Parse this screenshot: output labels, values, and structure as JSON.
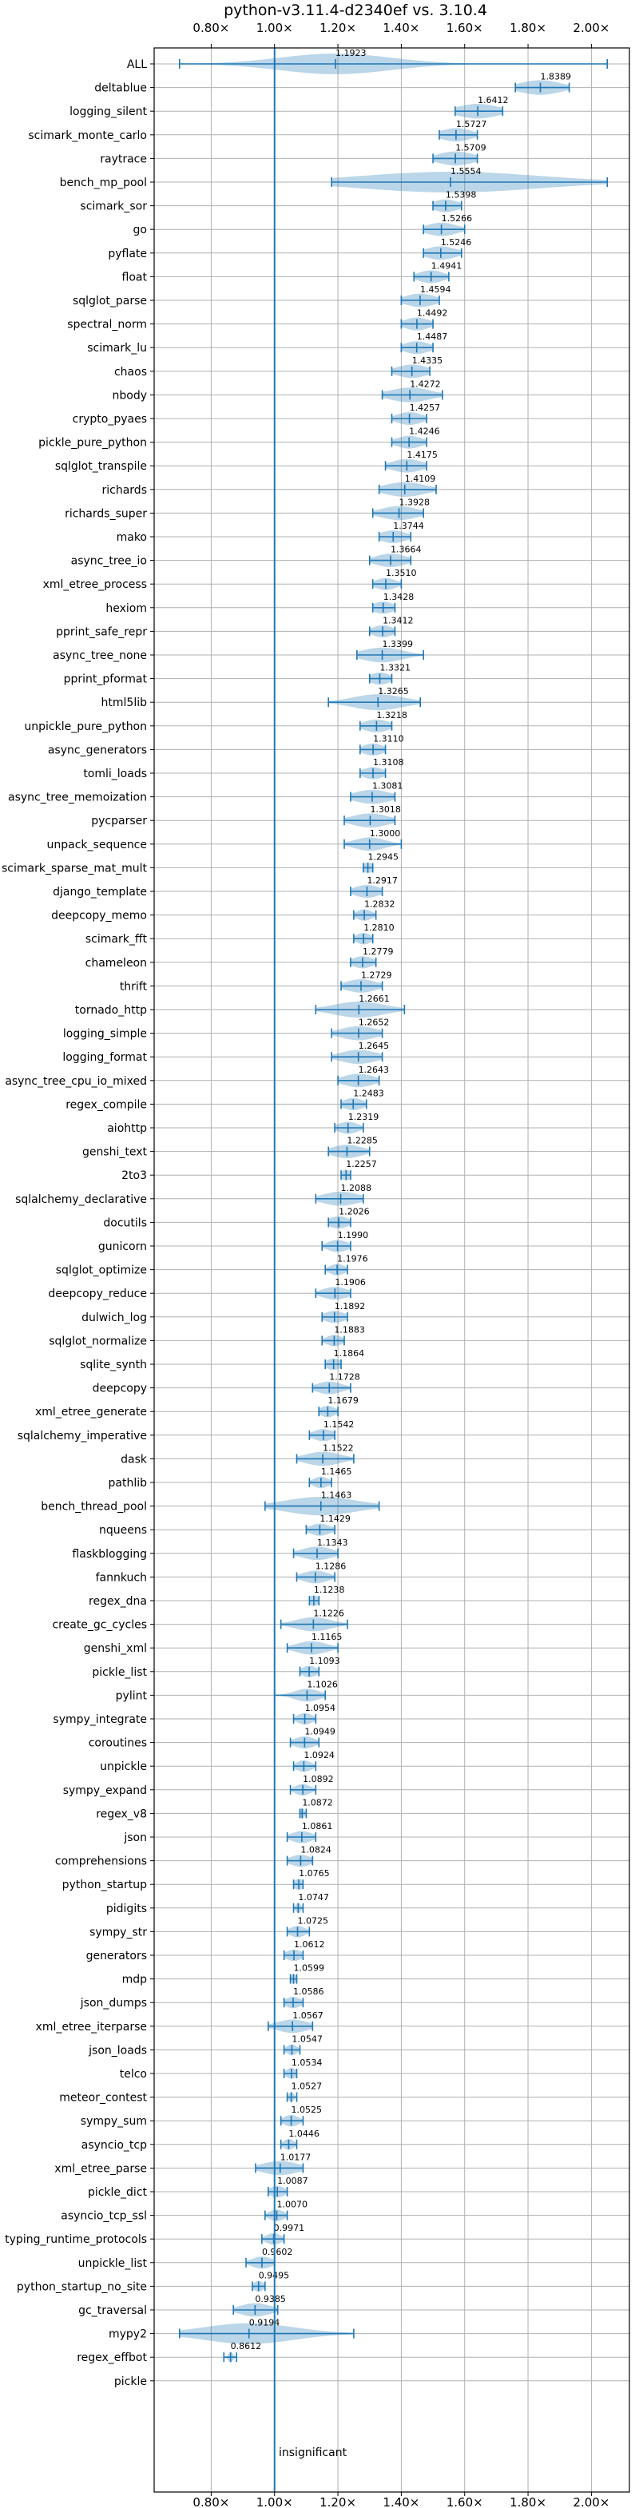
{
  "chart_data": {
    "type": "violin",
    "title": "python-v3.11.4-d2340ef vs. 3.10.4",
    "xlabel": "",
    "ylabel": "",
    "xlim": [
      0.62,
      2.12
    ],
    "x_ticks": [
      0.8,
      1.0,
      1.2,
      1.4,
      1.6,
      1.8,
      2.0
    ],
    "x_tick_labels": [
      "0.80×",
      "1.00×",
      "1.20×",
      "1.40×",
      "1.60×",
      "1.80×",
      "2.00×"
    ],
    "reference_x": 1.0,
    "grid": true,
    "color": "#1f77b4",
    "annotation": "insignificant",
    "benchmarks": [
      {
        "name": "ALL",
        "value": 1.1923,
        "min": 0.7,
        "max": 2.05,
        "spread": 0.22
      },
      {
        "name": "deltablue",
        "value": 1.8389,
        "min": 1.76,
        "max": 1.93,
        "spread": 0.08
      },
      {
        "name": "logging_silent",
        "value": 1.6412,
        "min": 1.57,
        "max": 1.72,
        "spread": 0.08
      },
      {
        "name": "scimark_monte_carlo",
        "value": 1.5727,
        "min": 1.52,
        "max": 1.64,
        "spread": 0.06
      },
      {
        "name": "raytrace",
        "value": 1.5709,
        "min": 1.5,
        "max": 1.64,
        "spread": 0.07
      },
      {
        "name": "bench_mp_pool",
        "value": 1.5554,
        "min": 1.18,
        "max": 2.05,
        "spread": 0.35
      },
      {
        "name": "scimark_sor",
        "value": 1.5398,
        "min": 1.5,
        "max": 1.59,
        "spread": 0.05
      },
      {
        "name": "go",
        "value": 1.5266,
        "min": 1.47,
        "max": 1.6,
        "spread": 0.06
      },
      {
        "name": "pyflate",
        "value": 1.5246,
        "min": 1.47,
        "max": 1.59,
        "spread": 0.06
      },
      {
        "name": "float",
        "value": 1.4941,
        "min": 1.44,
        "max": 1.55,
        "spread": 0.05
      },
      {
        "name": "sqlglot_parse",
        "value": 1.4594,
        "min": 1.4,
        "max": 1.52,
        "spread": 0.06
      },
      {
        "name": "spectral_norm",
        "value": 1.4492,
        "min": 1.4,
        "max": 1.5,
        "spread": 0.05
      },
      {
        "name": "scimark_lu",
        "value": 1.4487,
        "min": 1.4,
        "max": 1.5,
        "spread": 0.05
      },
      {
        "name": "chaos",
        "value": 1.4335,
        "min": 1.37,
        "max": 1.49,
        "spread": 0.06
      },
      {
        "name": "nbody",
        "value": 1.4272,
        "min": 1.34,
        "max": 1.53,
        "spread": 0.08
      },
      {
        "name": "crypto_pyaes",
        "value": 1.4257,
        "min": 1.37,
        "max": 1.48,
        "spread": 0.05
      },
      {
        "name": "pickle_pure_python",
        "value": 1.4246,
        "min": 1.37,
        "max": 1.48,
        "spread": 0.05
      },
      {
        "name": "sqlglot_transpile",
        "value": 1.4175,
        "min": 1.35,
        "max": 1.48,
        "spread": 0.06
      },
      {
        "name": "richards",
        "value": 1.4109,
        "min": 1.33,
        "max": 1.51,
        "spread": 0.08
      },
      {
        "name": "richards_super",
        "value": 1.3928,
        "min": 1.31,
        "max": 1.47,
        "spread": 0.07
      },
      {
        "name": "mako",
        "value": 1.3744,
        "min": 1.33,
        "max": 1.43,
        "spread": 0.05
      },
      {
        "name": "async_tree_io",
        "value": 1.3664,
        "min": 1.3,
        "max": 1.43,
        "spread": 0.06
      },
      {
        "name": "xml_etree_process",
        "value": 1.351,
        "min": 1.31,
        "max": 1.4,
        "spread": 0.04
      },
      {
        "name": "hexiom",
        "value": 1.3428,
        "min": 1.31,
        "max": 1.38,
        "spread": 0.04
      },
      {
        "name": "pprint_safe_repr",
        "value": 1.3412,
        "min": 1.3,
        "max": 1.38,
        "spread": 0.04
      },
      {
        "name": "async_tree_none",
        "value": 1.3399,
        "min": 1.26,
        "max": 1.47,
        "spread": 0.08
      },
      {
        "name": "pprint_pformat",
        "value": 1.3321,
        "min": 1.3,
        "max": 1.37,
        "spread": 0.04
      },
      {
        "name": "html5lib",
        "value": 1.3265,
        "min": 1.17,
        "max": 1.46,
        "spread": 0.1
      },
      {
        "name": "unpickle_pure_python",
        "value": 1.3218,
        "min": 1.27,
        "max": 1.37,
        "spread": 0.05
      },
      {
        "name": "async_generators",
        "value": 1.311,
        "min": 1.27,
        "max": 1.35,
        "spread": 0.04
      },
      {
        "name": "tomli_loads",
        "value": 1.3108,
        "min": 1.27,
        "max": 1.35,
        "spread": 0.04
      },
      {
        "name": "async_tree_memoization",
        "value": 1.3081,
        "min": 1.24,
        "max": 1.38,
        "spread": 0.07
      },
      {
        "name": "pycparser",
        "value": 1.3018,
        "min": 1.22,
        "max": 1.38,
        "spread": 0.07
      },
      {
        "name": "unpack_sequence",
        "value": 1.3,
        "min": 1.22,
        "max": 1.4,
        "spread": 0.06
      },
      {
        "name": "scimark_sparse_mat_mult",
        "value": 1.2945,
        "min": 1.28,
        "max": 1.31,
        "spread": 0.02
      },
      {
        "name": "django_template",
        "value": 1.2917,
        "min": 1.24,
        "max": 1.34,
        "spread": 0.05
      },
      {
        "name": "deepcopy_memo",
        "value": 1.2832,
        "min": 1.25,
        "max": 1.32,
        "spread": 0.03
      },
      {
        "name": "scimark_fft",
        "value": 1.281,
        "min": 1.25,
        "max": 1.31,
        "spread": 0.03
      },
      {
        "name": "chameleon",
        "value": 1.2779,
        "min": 1.24,
        "max": 1.32,
        "spread": 0.04
      },
      {
        "name": "thrift",
        "value": 1.2729,
        "min": 1.21,
        "max": 1.34,
        "spread": 0.06
      },
      {
        "name": "tornado_http",
        "value": 1.2661,
        "min": 1.13,
        "max": 1.41,
        "spread": 0.1
      },
      {
        "name": "logging_simple",
        "value": 1.2652,
        "min": 1.18,
        "max": 1.34,
        "spread": 0.07
      },
      {
        "name": "logging_format",
        "value": 1.2645,
        "min": 1.18,
        "max": 1.34,
        "spread": 0.07
      },
      {
        "name": "async_tree_cpu_io_mixed",
        "value": 1.2643,
        "min": 1.2,
        "max": 1.33,
        "spread": 0.06
      },
      {
        "name": "regex_compile",
        "value": 1.2483,
        "min": 1.21,
        "max": 1.29,
        "spread": 0.04
      },
      {
        "name": "aiohttp",
        "value": 1.2319,
        "min": 1.19,
        "max": 1.28,
        "spread": 0.04
      },
      {
        "name": "genshi_text",
        "value": 1.2285,
        "min": 1.17,
        "max": 1.3,
        "spread": 0.06
      },
      {
        "name": "2to3",
        "value": 1.2257,
        "min": 1.21,
        "max": 1.24,
        "spread": 0.02
      },
      {
        "name": "sqlalchemy_declarative",
        "value": 1.2088,
        "min": 1.13,
        "max": 1.28,
        "spread": 0.07
      },
      {
        "name": "docutils",
        "value": 1.2026,
        "min": 1.17,
        "max": 1.24,
        "spread": 0.04
      },
      {
        "name": "gunicorn",
        "value": 1.199,
        "min": 1.15,
        "max": 1.24,
        "spread": 0.04
      },
      {
        "name": "sqlglot_optimize",
        "value": 1.1976,
        "min": 1.16,
        "max": 1.23,
        "spread": 0.03
      },
      {
        "name": "deepcopy_reduce",
        "value": 1.1906,
        "min": 1.13,
        "max": 1.24,
        "spread": 0.05
      },
      {
        "name": "dulwich_log",
        "value": 1.1892,
        "min": 1.15,
        "max": 1.23,
        "spread": 0.04
      },
      {
        "name": "sqlglot_normalize",
        "value": 1.1883,
        "min": 1.15,
        "max": 1.22,
        "spread": 0.03
      },
      {
        "name": "sqlite_synth",
        "value": 1.1864,
        "min": 1.16,
        "max": 1.21,
        "spread": 0.03
      },
      {
        "name": "deepcopy",
        "value": 1.1728,
        "min": 1.12,
        "max": 1.24,
        "spread": 0.05
      },
      {
        "name": "xml_etree_generate",
        "value": 1.1679,
        "min": 1.14,
        "max": 1.2,
        "spread": 0.03
      },
      {
        "name": "sqlalchemy_imperative",
        "value": 1.1542,
        "min": 1.11,
        "max": 1.19,
        "spread": 0.04
      },
      {
        "name": "dask",
        "value": 1.1522,
        "min": 1.07,
        "max": 1.25,
        "spread": 0.07
      },
      {
        "name": "pathlib",
        "value": 1.1465,
        "min": 1.11,
        "max": 1.18,
        "spread": 0.03
      },
      {
        "name": "bench_thread_pool",
        "value": 1.1463,
        "min": 0.97,
        "max": 1.33,
        "spread": 0.14
      },
      {
        "name": "nqueens",
        "value": 1.1429,
        "min": 1.1,
        "max": 1.19,
        "spread": 0.04
      },
      {
        "name": "flaskblogging",
        "value": 1.1343,
        "min": 1.06,
        "max": 1.2,
        "spread": 0.06
      },
      {
        "name": "fannkuch",
        "value": 1.1286,
        "min": 1.07,
        "max": 1.19,
        "spread": 0.05
      },
      {
        "name": "regex_dna",
        "value": 1.1238,
        "min": 1.11,
        "max": 1.14,
        "spread": 0.02
      },
      {
        "name": "create_gc_cycles",
        "value": 1.1226,
        "min": 1.02,
        "max": 1.23,
        "spread": 0.07
      },
      {
        "name": "genshi_xml",
        "value": 1.1165,
        "min": 1.04,
        "max": 1.2,
        "spread": 0.06
      },
      {
        "name": "pickle_list",
        "value": 1.1093,
        "min": 1.08,
        "max": 1.14,
        "spread": 0.03
      },
      {
        "name": "pylint",
        "value": 1.1026,
        "min": 1.0,
        "max": 1.16,
        "spread": 0.05
      },
      {
        "name": "sympy_integrate",
        "value": 1.0954,
        "min": 1.06,
        "max": 1.13,
        "spread": 0.03
      },
      {
        "name": "coroutines",
        "value": 1.0949,
        "min": 1.05,
        "max": 1.14,
        "spread": 0.04
      },
      {
        "name": "unpickle",
        "value": 1.0924,
        "min": 1.06,
        "max": 1.13,
        "spread": 0.03
      },
      {
        "name": "sympy_expand",
        "value": 1.0892,
        "min": 1.05,
        "max": 1.13,
        "spread": 0.03
      },
      {
        "name": "regex_v8",
        "value": 1.0872,
        "min": 1.08,
        "max": 1.1,
        "spread": 0.01
      },
      {
        "name": "json",
        "value": 1.0861,
        "min": 1.04,
        "max": 1.13,
        "spread": 0.04
      },
      {
        "name": "comprehensions",
        "value": 1.0824,
        "min": 1.04,
        "max": 1.12,
        "spread": 0.04
      },
      {
        "name": "python_startup",
        "value": 1.0765,
        "min": 1.06,
        "max": 1.09,
        "spread": 0.02
      },
      {
        "name": "pidigits",
        "value": 1.0747,
        "min": 1.06,
        "max": 1.09,
        "spread": 0.01
      },
      {
        "name": "sympy_str",
        "value": 1.0725,
        "min": 1.04,
        "max": 1.11,
        "spread": 0.03
      },
      {
        "name": "generators",
        "value": 1.0612,
        "min": 1.03,
        "max": 1.09,
        "spread": 0.03
      },
      {
        "name": "mdp",
        "value": 1.0599,
        "min": 1.05,
        "max": 1.07,
        "spread": 0.01
      },
      {
        "name": "json_dumps",
        "value": 1.0586,
        "min": 1.03,
        "max": 1.09,
        "spread": 0.03
      },
      {
        "name": "xml_etree_iterparse",
        "value": 1.0567,
        "min": 0.98,
        "max": 1.12,
        "spread": 0.06
      },
      {
        "name": "json_loads",
        "value": 1.0547,
        "min": 1.03,
        "max": 1.08,
        "spread": 0.02
      },
      {
        "name": "telco",
        "value": 1.0534,
        "min": 1.03,
        "max": 1.07,
        "spread": 0.02
      },
      {
        "name": "meteor_contest",
        "value": 1.0527,
        "min": 1.04,
        "max": 1.07,
        "spread": 0.01
      },
      {
        "name": "sympy_sum",
        "value": 1.0525,
        "min": 1.02,
        "max": 1.09,
        "spread": 0.03
      },
      {
        "name": "asyncio_tcp",
        "value": 1.0446,
        "min": 1.02,
        "max": 1.07,
        "spread": 0.02
      },
      {
        "name": "xml_etree_parse",
        "value": 1.0177,
        "min": 0.94,
        "max": 1.09,
        "spread": 0.07
      },
      {
        "name": "pickle_dict",
        "value": 1.0087,
        "min": 0.98,
        "max": 1.04,
        "spread": 0.03
      },
      {
        "name": "asyncio_tcp_ssl",
        "value": 1.007,
        "min": 0.97,
        "max": 1.04,
        "spread": 0.03
      },
      {
        "name": "typing_runtime_protocols",
        "value": 0.9971,
        "min": 0.96,
        "max": 1.03,
        "spread": 0.03
      },
      {
        "name": "unpickle_list",
        "value": 0.9602,
        "min": 0.91,
        "max": 1.0,
        "spread": 0.04
      },
      {
        "name": "python_startup_no_site",
        "value": 0.9495,
        "min": 0.93,
        "max": 0.97,
        "spread": 0.02
      },
      {
        "name": "gc_traversal",
        "value": 0.9385,
        "min": 0.87,
        "max": 1.01,
        "spread": 0.06
      },
      {
        "name": "mypy2",
        "value": 0.9194,
        "min": 0.7,
        "max": 1.25,
        "spread": 0.18
      },
      {
        "name": "regex_effbot",
        "value": 0.8612,
        "min": 0.84,
        "max": 0.88,
        "spread": 0.01
      },
      {
        "name": "pickle",
        "value": null,
        "min": null,
        "max": null,
        "spread": 0
      }
    ]
  }
}
